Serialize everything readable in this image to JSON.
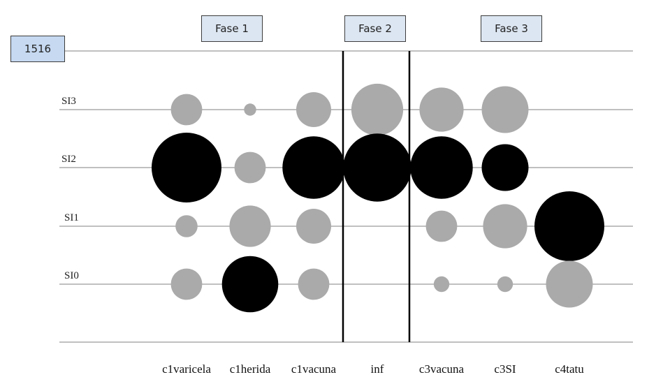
{
  "id_label": "1516",
  "phases": [
    {
      "label": "Fase 1"
    },
    {
      "label": "Fase 2"
    },
    {
      "label": "Fase 3"
    }
  ],
  "colors": {
    "low": "#aaaaaa",
    "high": "#000000",
    "line": "#9a9a9a",
    "divider": "#000000"
  },
  "chart_data": {
    "type": "scatter",
    "title": "",
    "xlabel": "",
    "ylabel": "",
    "categories": [
      "c1varicela",
      "c1herida",
      "c1vacuna",
      "inf",
      "c3vacuna",
      "c3SI",
      "c4tatu"
    ],
    "y_levels": [
      "SI0",
      "SI1",
      "SI2",
      "SI3"
    ],
    "grid": true,
    "points": [
      {
        "x": "c1varicela",
        "y": "SI3",
        "size": 2,
        "group": "low"
      },
      {
        "x": "c1varicela",
        "y": "SI2",
        "size": 10,
        "group": "high"
      },
      {
        "x": "c1varicela",
        "y": "SI1",
        "size": 1,
        "group": "low"
      },
      {
        "x": "c1varicela",
        "y": "SI0",
        "size": 2,
        "group": "low"
      },
      {
        "x": "c1herida",
        "y": "SI3",
        "size": 0.3,
        "group": "low"
      },
      {
        "x": "c1herida",
        "y": "SI2",
        "size": 2,
        "group": "low"
      },
      {
        "x": "c1herida",
        "y": "SI1",
        "size": 3.5,
        "group": "low"
      },
      {
        "x": "c1herida",
        "y": "SI0",
        "size": 6.5,
        "group": "high"
      },
      {
        "x": "c1vacuna",
        "y": "SI3",
        "size": 2.5,
        "group": "low"
      },
      {
        "x": "c1vacuna",
        "y": "SI2",
        "size": 8,
        "group": "high"
      },
      {
        "x": "c1vacuna",
        "y": "SI1",
        "size": 2.5,
        "group": "low"
      },
      {
        "x": "c1vacuna",
        "y": "SI0",
        "size": 2,
        "group": "low"
      },
      {
        "x": "inf",
        "y": "SI3",
        "size": 5.5,
        "group": "low"
      },
      {
        "x": "inf",
        "y": "SI2",
        "size": 9.5,
        "group": "high"
      },
      {
        "x": "c3vacuna",
        "y": "SI3",
        "size": 4,
        "group": "low"
      },
      {
        "x": "c3vacuna",
        "y": "SI2",
        "size": 8,
        "group": "high"
      },
      {
        "x": "c3vacuna",
        "y": "SI1",
        "size": 2,
        "group": "low"
      },
      {
        "x": "c3vacuna",
        "y": "SI0",
        "size": 0.5,
        "group": "low"
      },
      {
        "x": "c3SI",
        "y": "SI3",
        "size": 4.5,
        "group": "low"
      },
      {
        "x": "c3SI",
        "y": "SI2",
        "size": 4.5,
        "group": "high"
      },
      {
        "x": "c3SI",
        "y": "SI1",
        "size": 4,
        "group": "low"
      },
      {
        "x": "c3SI",
        "y": "SI0",
        "size": 0.5,
        "group": "low"
      },
      {
        "x": "c4tatu",
        "y": "SI1",
        "size": 10,
        "group": "high"
      },
      {
        "x": "c4tatu",
        "y": "SI0",
        "size": 4.5,
        "group": "low"
      }
    ]
  }
}
